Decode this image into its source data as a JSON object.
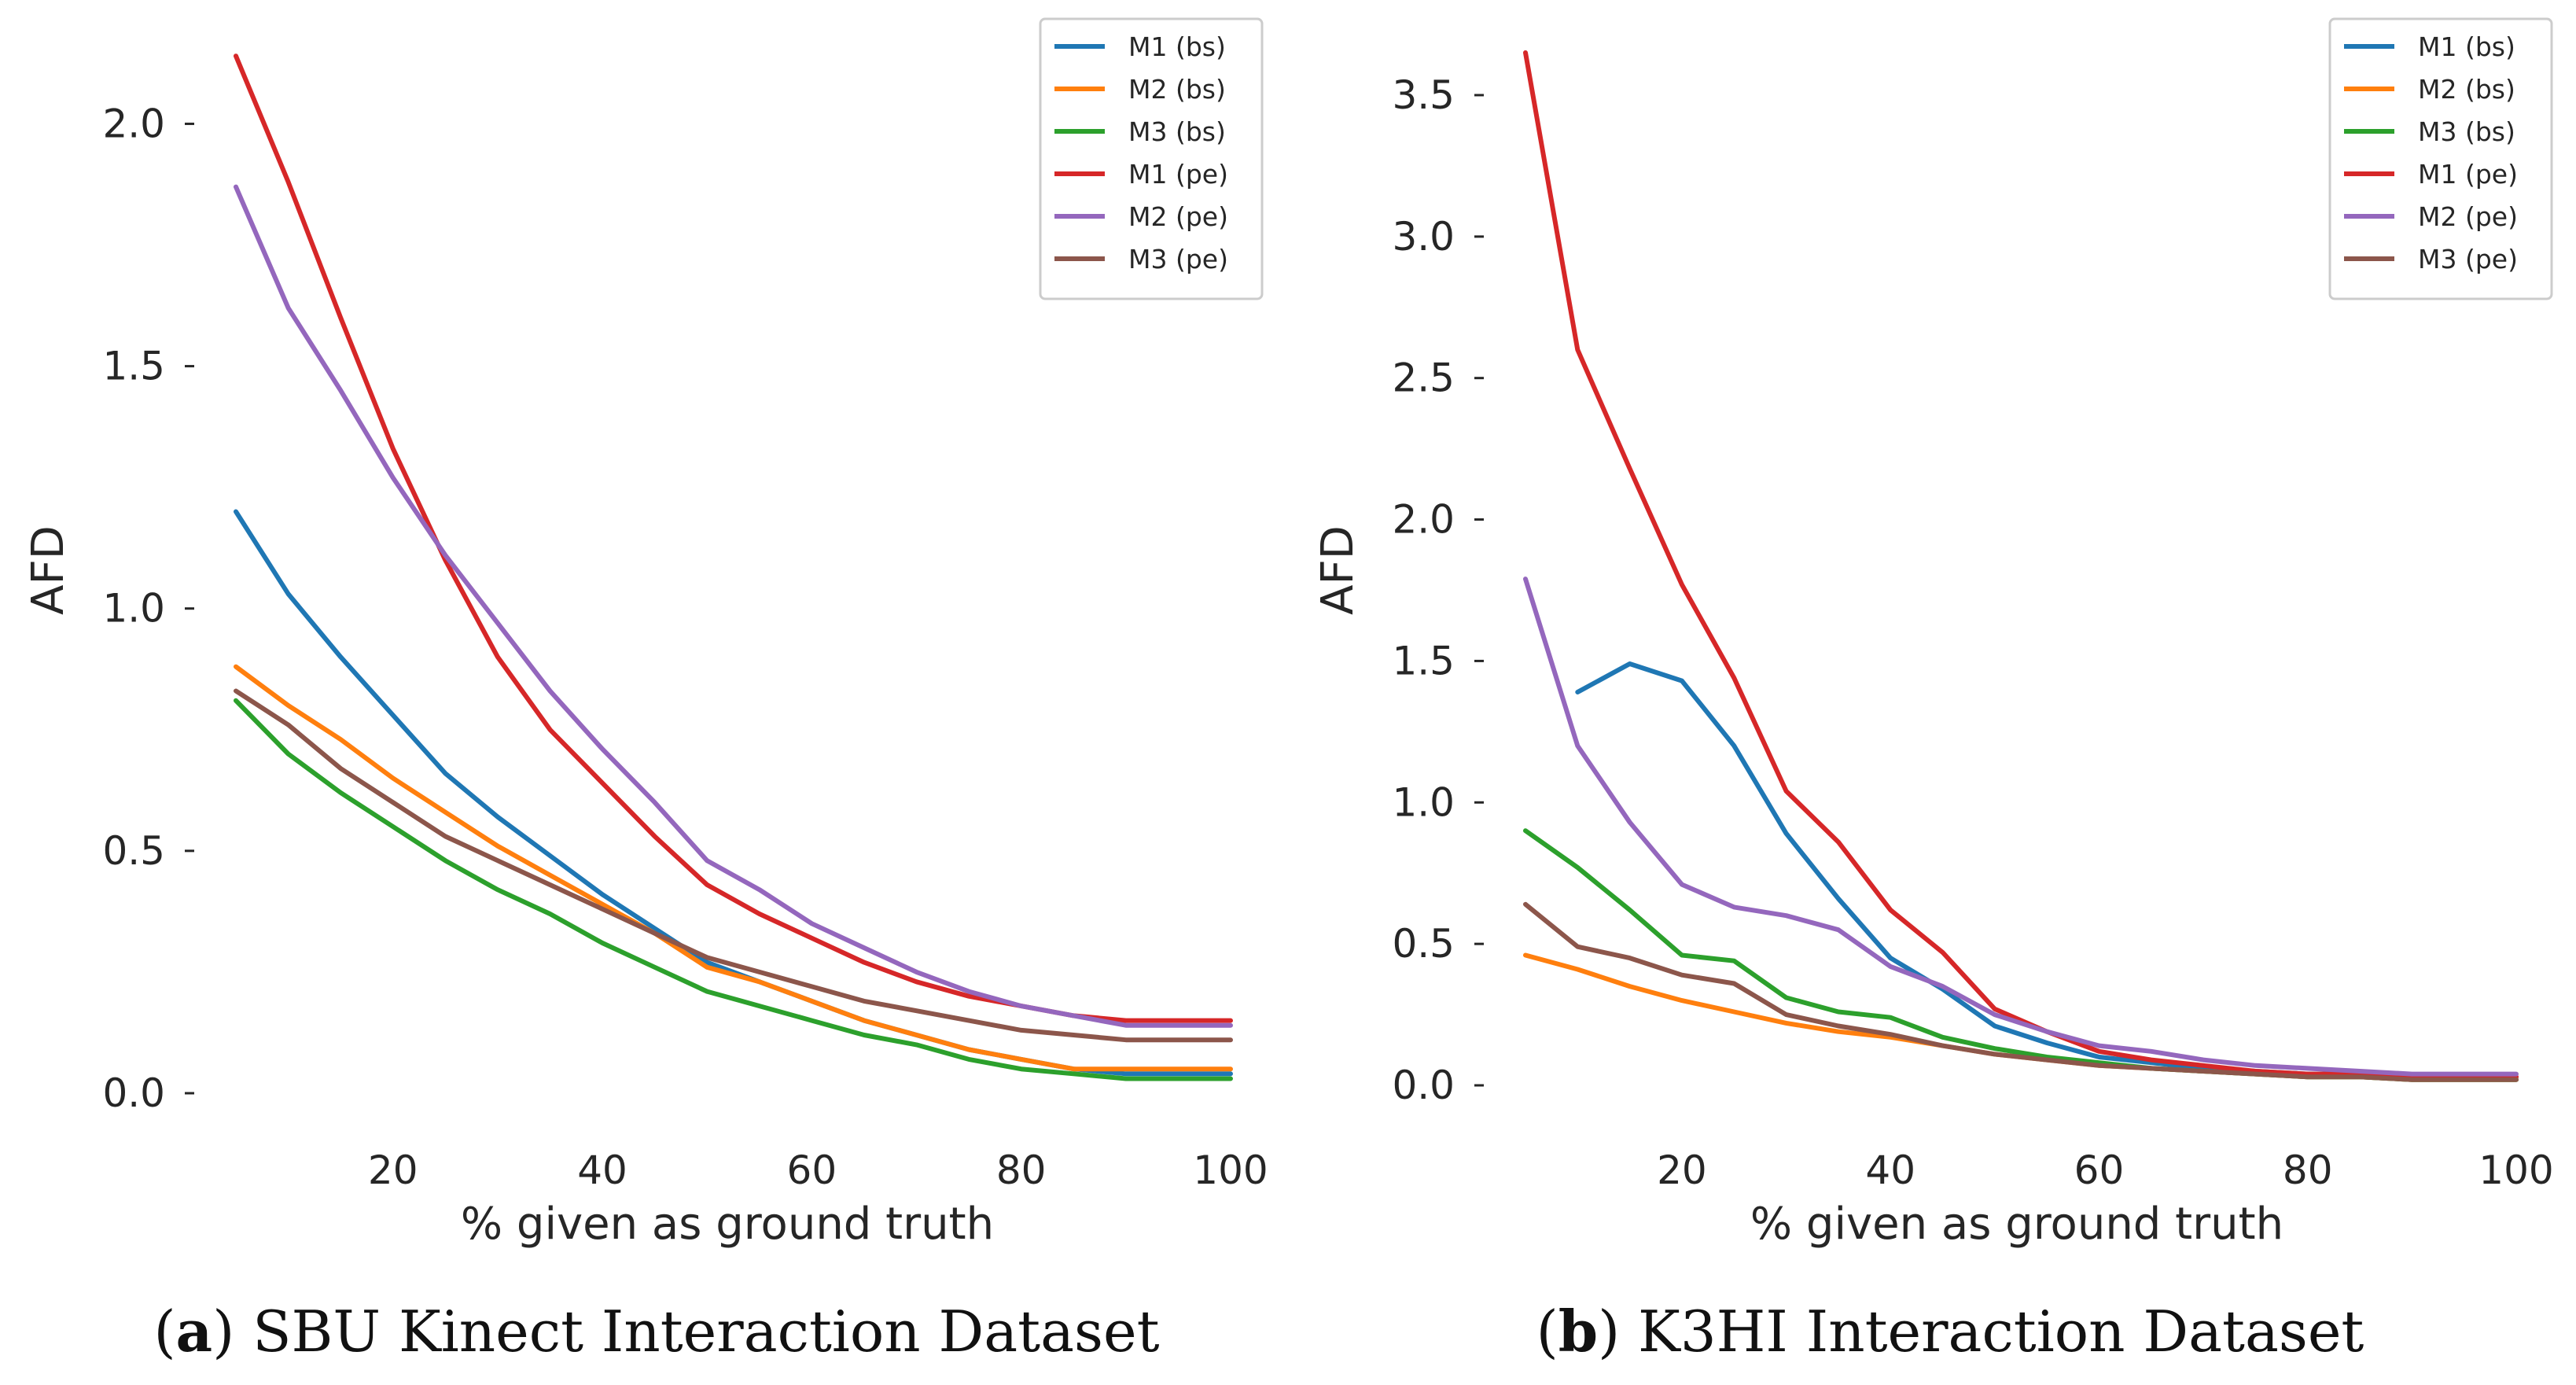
{
  "chart_data": [
    {
      "type": "line",
      "caption_letter": "a",
      "caption_text": "SBU Kinect Interaction Dataset",
      "xlabel": "% given as ground truth",
      "ylabel": "AFD",
      "xlim": [
        5,
        100
      ],
      "ylim": [
        0.0,
        2.15
      ],
      "xticks": [
        "20",
        "40",
        "60",
        "80",
        "100"
      ],
      "yticks": [
        "0.0",
        "0.5",
        "1.0",
        "1.5",
        "2.0"
      ],
      "legend_position": "top-right",
      "series": [
        {
          "name": "M1 (bs)",
          "color": "#1f77b4",
          "x": [
            5,
            10,
            15,
            20,
            25,
            30,
            35,
            40,
            45,
            50,
            55,
            60,
            65,
            70,
            75,
            80,
            85,
            90,
            95,
            100
          ],
          "values": [
            1.2,
            1.03,
            0.9,
            0.78,
            0.66,
            0.57,
            0.49,
            0.41,
            0.34,
            0.27,
            0.23,
            0.19,
            0.15,
            0.12,
            0.09,
            0.07,
            0.05,
            0.04,
            0.04,
            0.04
          ]
        },
        {
          "name": "M2 (bs)",
          "color": "#ff7f0e",
          "x": [
            5,
            10,
            15,
            20,
            25,
            30,
            35,
            40,
            45,
            50,
            55,
            60,
            65,
            70,
            75,
            80,
            85,
            90,
            95,
            100
          ],
          "values": [
            0.88,
            0.8,
            0.73,
            0.65,
            0.58,
            0.51,
            0.45,
            0.39,
            0.33,
            0.26,
            0.23,
            0.19,
            0.15,
            0.12,
            0.09,
            0.07,
            0.05,
            0.05,
            0.05,
            0.05
          ]
        },
        {
          "name": "M3 (bs)",
          "color": "#2ca02c",
          "x": [
            5,
            10,
            15,
            20,
            25,
            30,
            35,
            40,
            45,
            50,
            55,
            60,
            65,
            70,
            75,
            80,
            85,
            90,
            95,
            100
          ],
          "values": [
            0.81,
            0.7,
            0.62,
            0.55,
            0.48,
            0.42,
            0.37,
            0.31,
            0.26,
            0.21,
            0.18,
            0.15,
            0.12,
            0.1,
            0.07,
            0.05,
            0.04,
            0.03,
            0.03,
            0.03
          ]
        },
        {
          "name": "M1 (pe)",
          "color": "#d62728",
          "x": [
            5,
            10,
            15,
            20,
            25,
            30,
            35,
            40,
            45,
            50,
            55,
            60,
            65,
            70,
            75,
            80,
            85,
            90,
            95,
            100
          ],
          "values": [
            2.14,
            1.88,
            1.6,
            1.33,
            1.1,
            0.9,
            0.75,
            0.64,
            0.53,
            0.43,
            0.37,
            0.32,
            0.27,
            0.23,
            0.2,
            0.18,
            0.16,
            0.15,
            0.15,
            0.15
          ]
        },
        {
          "name": "M2 (pe)",
          "color": "#9467bd",
          "x": [
            5,
            10,
            15,
            20,
            25,
            30,
            35,
            40,
            45,
            50,
            55,
            60,
            65,
            70,
            75,
            80,
            85,
            90,
            95,
            100
          ],
          "values": [
            1.87,
            1.62,
            1.45,
            1.27,
            1.11,
            0.97,
            0.83,
            0.71,
            0.6,
            0.48,
            0.42,
            0.35,
            0.3,
            0.25,
            0.21,
            0.18,
            0.16,
            0.14,
            0.14,
            0.14
          ]
        },
        {
          "name": "M3 (pe)",
          "color": "#8c564b",
          "x": [
            5,
            10,
            15,
            20,
            25,
            30,
            35,
            40,
            45,
            50,
            55,
            60,
            65,
            70,
            75,
            80,
            85,
            90,
            95,
            100
          ],
          "values": [
            0.83,
            0.76,
            0.67,
            0.6,
            0.53,
            0.48,
            0.43,
            0.38,
            0.33,
            0.28,
            0.25,
            0.22,
            0.19,
            0.17,
            0.15,
            0.13,
            0.12,
            0.11,
            0.11,
            0.11
          ]
        }
      ]
    },
    {
      "type": "line",
      "caption_letter": "b",
      "caption_text": "K3HI Interaction Dataset",
      "xlabel": "% given as ground truth",
      "ylabel": "AFD",
      "xlim": [
        5,
        100
      ],
      "ylim": [
        0.0,
        3.65
      ],
      "xticks": [
        "20",
        "40",
        "60",
        "80",
        "100"
      ],
      "yticks": [
        "0.0",
        "0.5",
        "1.0",
        "1.5",
        "2.0",
        "2.5",
        "3.0",
        "3.5"
      ],
      "legend_position": "top-right",
      "series": [
        {
          "name": "M1 (bs)",
          "color": "#1f77b4",
          "x": [
            10,
            15,
            20,
            25,
            30,
            35,
            40,
            45,
            50,
            55,
            60,
            65,
            70,
            75,
            80,
            85,
            90,
            95,
            100
          ],
          "values": [
            1.39,
            1.49,
            1.43,
            1.2,
            0.89,
            0.66,
            0.45,
            0.34,
            0.21,
            0.15,
            0.1,
            0.08,
            0.06,
            0.05,
            0.04,
            0.04,
            0.03,
            0.03,
            0.03
          ]
        },
        {
          "name": "M2 (bs)",
          "color": "#ff7f0e",
          "x": [
            5,
            10,
            15,
            20,
            25,
            30,
            35,
            40,
            45,
            50,
            55,
            60,
            65,
            70,
            75,
            80,
            85,
            90,
            95,
            100
          ],
          "values": [
            0.46,
            0.41,
            0.35,
            0.3,
            0.26,
            0.22,
            0.19,
            0.17,
            0.14,
            0.11,
            0.09,
            0.07,
            0.06,
            0.05,
            0.04,
            0.03,
            0.03,
            0.02,
            0.02,
            0.02
          ]
        },
        {
          "name": "M3 (bs)",
          "color": "#2ca02c",
          "x": [
            5,
            10,
            15,
            20,
            25,
            30,
            35,
            40,
            45,
            50,
            55,
            60,
            65,
            70,
            75,
            80,
            85,
            90,
            95,
            100
          ],
          "values": [
            0.9,
            0.77,
            0.62,
            0.46,
            0.44,
            0.31,
            0.26,
            0.24,
            0.17,
            0.13,
            0.1,
            0.08,
            0.06,
            0.05,
            0.04,
            0.03,
            0.03,
            0.02,
            0.02,
            0.02
          ]
        },
        {
          "name": "M1 (pe)",
          "color": "#d62728",
          "x": [
            5,
            10,
            15,
            20,
            25,
            30,
            35,
            40,
            45,
            50,
            55,
            60,
            65,
            70,
            75,
            80,
            85,
            90,
            95,
            100
          ],
          "values": [
            3.65,
            2.6,
            2.18,
            1.77,
            1.44,
            1.04,
            0.86,
            0.62,
            0.47,
            0.27,
            0.19,
            0.12,
            0.09,
            0.07,
            0.05,
            0.04,
            0.04,
            0.03,
            0.03,
            0.03
          ]
        },
        {
          "name": "M2 (pe)",
          "color": "#9467bd",
          "x": [
            5,
            10,
            15,
            20,
            25,
            30,
            35,
            40,
            45,
            50,
            55,
            60,
            65,
            70,
            75,
            80,
            85,
            90,
            95,
            100
          ],
          "values": [
            1.79,
            1.2,
            0.93,
            0.71,
            0.63,
            0.6,
            0.55,
            0.42,
            0.35,
            0.25,
            0.19,
            0.14,
            0.12,
            0.09,
            0.07,
            0.06,
            0.05,
            0.04,
            0.04,
            0.04
          ]
        },
        {
          "name": "M3 (pe)",
          "color": "#8c564b",
          "x": [
            5,
            10,
            15,
            20,
            25,
            30,
            35,
            40,
            45,
            50,
            55,
            60,
            65,
            70,
            75,
            80,
            85,
            90,
            95,
            100
          ],
          "values": [
            0.64,
            0.49,
            0.45,
            0.39,
            0.36,
            0.25,
            0.21,
            0.18,
            0.14,
            0.11,
            0.09,
            0.07,
            0.06,
            0.05,
            0.04,
            0.03,
            0.03,
            0.02,
            0.02,
            0.02
          ]
        }
      ]
    }
  ]
}
